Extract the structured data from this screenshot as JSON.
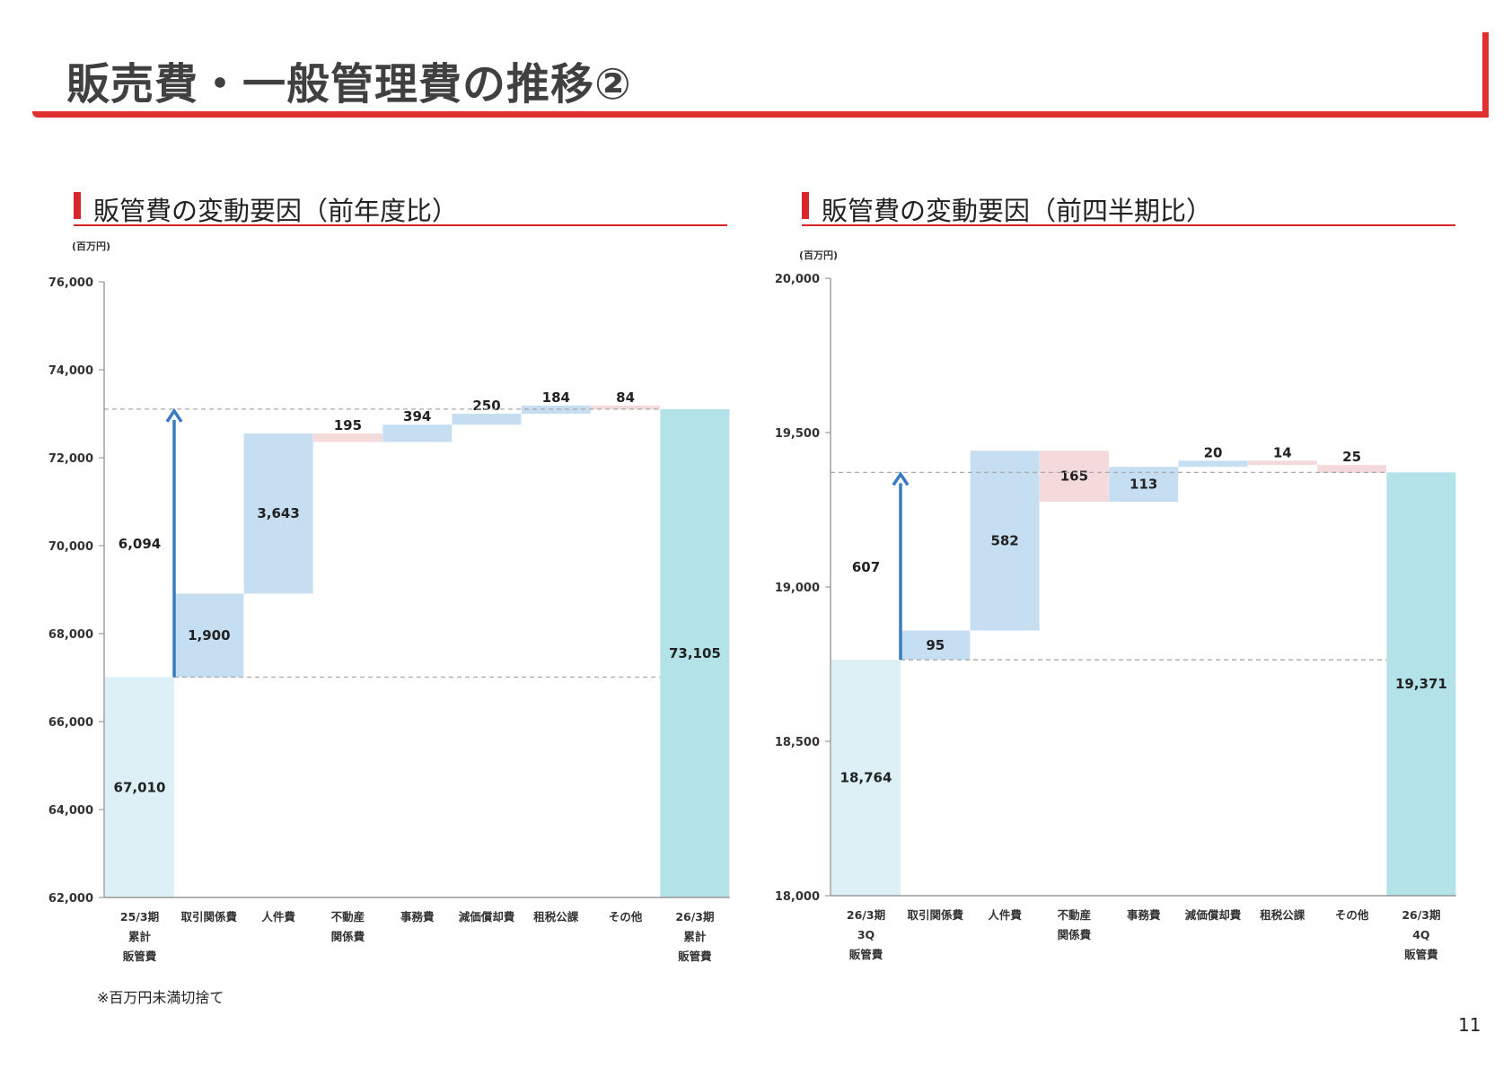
{
  "page": {
    "title": "販売費・一般管理費の推移②",
    "footnote": "※百万円未満切捨て",
    "page_number": "11"
  },
  "colors": {
    "accent_red": "#d9262b",
    "total_start": "#dcf0f6",
    "total_end": "#b3e3e8",
    "increase": "#c5def1",
    "decrease": "#f5dadc",
    "arrow": "#3a7bbf"
  },
  "chart_data": [
    {
      "type": "waterfall",
      "title": "販管費の変動要因（前年度比）",
      "unit_label": "(百万円)",
      "ylim": [
        62000,
        76000
      ],
      "y_ticks": [
        "62,000",
        "64,000",
        "66,000",
        "68,000",
        "70,000",
        "72,000",
        "74,000",
        "76,000"
      ],
      "categories": [
        [
          "25/3期",
          "累計",
          "販管費"
        ],
        [
          "取引関係費"
        ],
        [
          "人件費"
        ],
        [
          "不動産",
          "関係費"
        ],
        [
          "事務費"
        ],
        [
          "減価償却費"
        ],
        [
          "租税公課"
        ],
        [
          "その他"
        ],
        [
          "26/3期",
          "累計",
          "販管費"
        ]
      ],
      "bars": [
        {
          "kind": "total",
          "value": 67010,
          "label": "67,010"
        },
        {
          "kind": "increase",
          "value": 1900,
          "label": "1,900"
        },
        {
          "kind": "increase",
          "value": 3643,
          "label": "3,643"
        },
        {
          "kind": "decrease",
          "value": 195,
          "label": "195"
        },
        {
          "kind": "increase",
          "value": 394,
          "label": "394"
        },
        {
          "kind": "increase",
          "value": 250,
          "label": "250"
        },
        {
          "kind": "increase",
          "value": 184,
          "label": "184"
        },
        {
          "kind": "decrease",
          "value": 84,
          "label": "84"
        },
        {
          "kind": "total",
          "value": 73105,
          "label": "73,105"
        }
      ],
      "net_change": {
        "value": 6094,
        "label": "6,094"
      }
    },
    {
      "type": "waterfall",
      "title": "販管費の変動要因（前四半期比）",
      "unit_label": "(百万円)",
      "ylim": [
        18000,
        20000
      ],
      "y_ticks": [
        "18,000",
        "18,500",
        "19,000",
        "19,500",
        "20,000"
      ],
      "categories": [
        [
          "26/3期",
          "3Q",
          "販管費"
        ],
        [
          "取引関係費"
        ],
        [
          "人件費"
        ],
        [
          "不動産",
          "関係費"
        ],
        [
          "事務費"
        ],
        [
          "減価償却費"
        ],
        [
          "租税公課"
        ],
        [
          "その他"
        ],
        [
          "26/3期",
          "4Q",
          "販管費"
        ]
      ],
      "bars": [
        {
          "kind": "total",
          "value": 18764,
          "label": "18,764"
        },
        {
          "kind": "increase",
          "value": 95,
          "label": "95"
        },
        {
          "kind": "increase",
          "value": 582,
          "label": "582"
        },
        {
          "kind": "decrease",
          "value": 165,
          "label": "165"
        },
        {
          "kind": "increase",
          "value": 113,
          "label": "113"
        },
        {
          "kind": "increase",
          "value": 20,
          "label": "20"
        },
        {
          "kind": "decrease",
          "value": 14,
          "label": "14"
        },
        {
          "kind": "decrease",
          "value": 25,
          "label": "25"
        },
        {
          "kind": "total",
          "value": 19371,
          "label": "19,371"
        }
      ],
      "net_change": {
        "value": 607,
        "label": "607"
      }
    }
  ]
}
